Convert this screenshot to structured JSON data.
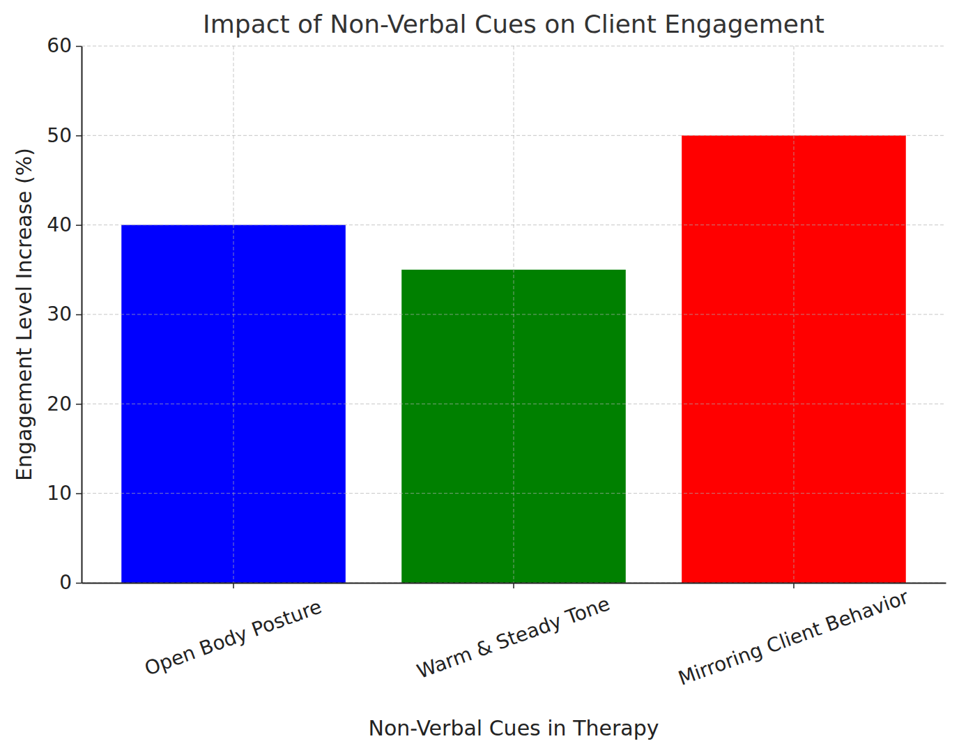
{
  "chart_data": {
    "type": "bar",
    "title": "Impact of Non-Verbal Cues on Client Engagement",
    "x_label": "Non-Verbal Cues in Therapy",
    "y_label": "Engagement Level Increase (%)",
    "categories": [
      "Open Body Posture",
      "Warm & Steady Tone",
      "Mirroring Client Behavior"
    ],
    "values": [
      40,
      35,
      50
    ],
    "colors": [
      "#0000ff",
      "#008000",
      "#ff0000"
    ],
    "ylim": [
      0,
      60
    ],
    "yticks": [
      0,
      10,
      20,
      30,
      40,
      50,
      60
    ],
    "grid": true
  }
}
